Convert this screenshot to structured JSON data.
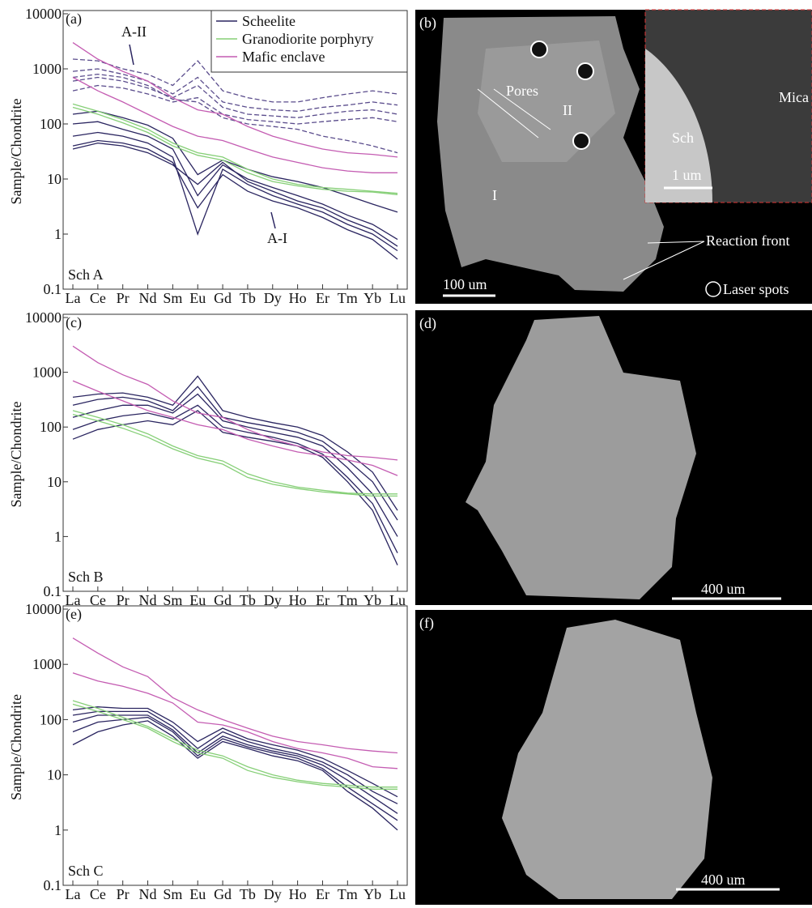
{
  "chart_data": [
    {
      "type": "line",
      "panel": "(a)",
      "sample": "Sch A",
      "y_label": "Sample/Chondrite",
      "log": true,
      "legend": "top-right",
      "categories": [
        "La",
        "Ce",
        "Pr",
        "Nd",
        "Sm",
        "Eu",
        "Gd",
        "Tb",
        "Dy",
        "Ho",
        "Er",
        "Tm",
        "Yb",
        "Lu"
      ],
      "ylim": [
        0.1,
        10000
      ],
      "yticks": [
        0.1,
        1,
        10,
        100,
        1000,
        10000
      ],
      "annotations": [
        "A-II",
        "A-I"
      ],
      "series": [
        {
          "name": "Scheelite",
          "color": "#2a2560",
          "lines": [
            [
              150,
              170,
              130,
              95,
              55,
              12,
              22,
              15,
              11,
              9,
              7,
              5,
              3.5,
              2.5
            ],
            [
              100,
              110,
              80,
              60,
              35,
              5,
              18,
              10,
              7,
              5,
              3.5,
              2.2,
              1.5,
              0.8
            ],
            [
              60,
              70,
              60,
              45,
              25,
              1,
              15,
              8,
              5,
              3.5,
              2.5,
              1.5,
              1,
              0.5
            ],
            [
              40,
              50,
              45,
              35,
              20,
              3,
              12,
              6,
              4,
              3,
              2,
              1.2,
              0.8,
              0.35
            ],
            [
              35,
              45,
              40,
              30,
              18,
              8,
              20,
              9,
              6,
              4,
              3,
              1.8,
              1.2,
              0.6
            ]
          ]
        },
        {
          "color": "#5a4c8c",
          "dash": true,
          "lines": [
            [
              1500,
              1400,
              1000,
              800,
              500,
              1400,
              400,
              300,
              250,
              250,
              300,
              350,
              400,
              350
            ],
            [
              900,
              1000,
              800,
              600,
              350,
              700,
              250,
              200,
              180,
              170,
              200,
              220,
              250,
              220
            ],
            [
              600,
              700,
              600,
              450,
              300,
              500,
              200,
              150,
              140,
              130,
              150,
              170,
              180,
              150
            ],
            [
              400,
              500,
              450,
              350,
              250,
              300,
              150,
              120,
              110,
              100,
              110,
              120,
              130,
              110
            ],
            [
              700,
              800,
              700,
              500,
              280,
              250,
              130,
              100,
              90,
              80,
              60,
              50,
              40,
              30
            ]
          ]
        },
        {
          "name": "Granodiorite porphyry",
          "color": "#86cf77",
          "lines": [
            [
              230,
              170,
              120,
              80,
              45,
              30,
              25,
              15,
              10,
              8,
              7,
              6.5,
              6,
              5.5
            ],
            [
              200,
              150,
              105,
              70,
              40,
              27,
              22,
              13,
              9,
              7.5,
              6.5,
              6,
              5.8,
              5.2
            ]
          ]
        },
        {
          "name": "Mafic enclave",
          "color": "#c45cb2",
          "lines": [
            [
              3000,
              1500,
              900,
              600,
              300,
              180,
              150,
              90,
              60,
              45,
              35,
              30,
              28,
              25
            ],
            [
              700,
              400,
              250,
              150,
              90,
              60,
              50,
              35,
              25,
              20,
              16,
              14,
              13,
              13
            ]
          ]
        }
      ]
    },
    {
      "type": "line",
      "panel": "(c)",
      "sample": "Sch B",
      "y_label": "Sample/Chondrite",
      "log": true,
      "categories": [
        "La",
        "Ce",
        "Pr",
        "Nd",
        "Sm",
        "Eu",
        "Gd",
        "Tb",
        "Dy",
        "Ho",
        "Er",
        "Tm",
        "Yb",
        "Lu"
      ],
      "ylim": [
        0.1,
        10000
      ],
      "yticks": [
        0.1,
        1,
        10,
        100,
        1000,
        10000
      ],
      "series": [
        {
          "color": "#2a2560",
          "lines": [
            [
              350,
              400,
              420,
              350,
              250,
              850,
              200,
              150,
              120,
              100,
              70,
              35,
              15,
              3
            ],
            [
              250,
              320,
              350,
              300,
              200,
              550,
              150,
              120,
              100,
              80,
              55,
              25,
              10,
              2
            ],
            [
              150,
              200,
              250,
              250,
              180,
              400,
              130,
              100,
              80,
              65,
              45,
              18,
              6,
              1
            ],
            [
              90,
              130,
              160,
              180,
              140,
              250,
              100,
              80,
              65,
              50,
              32,
              12,
              4,
              0.5
            ],
            [
              60,
              90,
              110,
              130,
              110,
              200,
              80,
              65,
              55,
              45,
              28,
              10,
              3,
              0.3
            ]
          ]
        },
        {
          "color": "#86cf77",
          "lines": [
            [
              200,
              150,
              110,
              75,
              45,
              30,
              24,
              14,
              10,
              8,
              7,
              6.2,
              6,
              6
            ],
            [
              170,
              130,
              95,
              65,
              40,
              27,
              21,
              12,
              9,
              7.5,
              6.5,
              6,
              5.5,
              5.5
            ]
          ]
        },
        {
          "color": "#c45cb2",
          "lines": [
            [
              3000,
              1500,
              900,
              600,
              300,
              180,
              150,
              90,
              60,
              45,
              35,
              30,
              28,
              25
            ],
            [
              700,
              450,
              300,
              200,
              150,
              110,
              90,
              60,
              45,
              35,
              30,
              25,
              20,
              13
            ]
          ]
        }
      ]
    },
    {
      "type": "line",
      "panel": "(e)",
      "sample": "Sch C",
      "y_label": "Sample/Chondrite",
      "log": true,
      "categories": [
        "La",
        "Ce",
        "Pr",
        "Nd",
        "Sm",
        "Eu",
        "Gd",
        "Tb",
        "Dy",
        "Ho",
        "Er",
        "Tm",
        "Yb",
        "Lu"
      ],
      "ylim": [
        0.1,
        10000
      ],
      "yticks": [
        0.1,
        1,
        10,
        100,
        1000,
        10000
      ],
      "series": [
        {
          "color": "#2a2560",
          "lines": [
            [
              150,
              170,
              160,
              160,
              90,
              40,
              70,
              45,
              35,
              28,
              20,
              12,
              7,
              4
            ],
            [
              120,
              140,
              140,
              140,
              75,
              30,
              60,
              40,
              30,
              24,
              17,
              10,
              5,
              3
            ],
            [
              90,
              120,
              120,
              120,
              65,
              25,
              50,
              35,
              27,
              22,
              15,
              8,
              4,
              2
            ],
            [
              60,
              90,
              100,
              110,
              60,
              22,
              45,
              32,
              25,
              20,
              13,
              6,
              3,
              1.5
            ],
            [
              35,
              60,
              80,
              95,
              50,
              20,
              40,
              30,
              22,
              18,
              12,
              5,
              2.5,
              1
            ]
          ]
        },
        {
          "color": "#86cf77",
          "lines": [
            [
              220,
              160,
              110,
              75,
              45,
              28,
              22,
              14,
              10,
              8,
              7,
              6.5,
              6,
              6
            ],
            [
              190,
              140,
              100,
              70,
              40,
              25,
              20,
              12,
              9,
              7.5,
              6.5,
              6,
              5.5,
              5.5
            ]
          ]
        },
        {
          "color": "#c45cb2",
          "lines": [
            [
              3000,
              1600,
              900,
              600,
              250,
              150,
              100,
              70,
              50,
              40,
              35,
              30,
              27,
              25
            ],
            [
              700,
              500,
              400,
              300,
              200,
              90,
              80,
              60,
              40,
              30,
              25,
              20,
              14,
              13
            ]
          ]
        }
      ]
    }
  ],
  "images": [
    {
      "label": "(b)",
      "pores": "Pores",
      "zone2": "II",
      "zone1": "I",
      "sch": "Sch",
      "mica": "Mica",
      "inset_scale": "1 um",
      "reaction": "Reaction front",
      "spots": "Laser spots",
      "scale_bar": "100 um"
    },
    {
      "label": "(d)",
      "scale_bar": "400 um"
    },
    {
      "label": "(f)",
      "scale_bar": "400 um"
    }
  ]
}
